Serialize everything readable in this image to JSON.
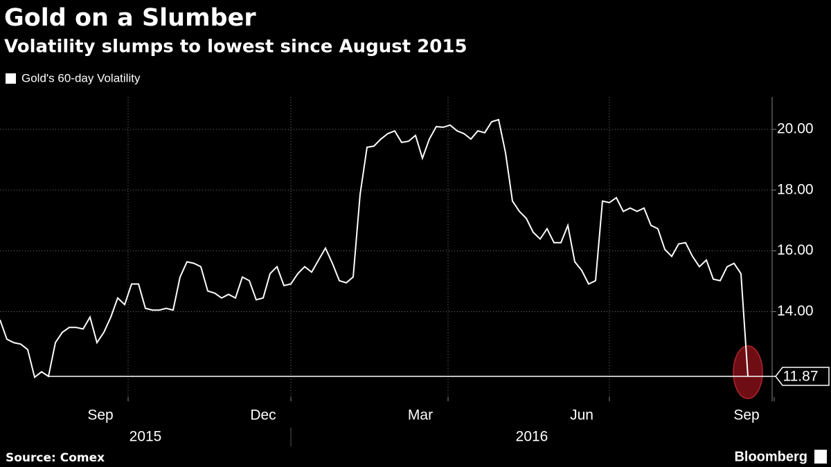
{
  "chart_data": {
    "type": "line",
    "title": "Gold on a Slumber",
    "subtitle": "Volatility slumps to lowest since August 2015",
    "source": "Source: Comex",
    "brand": "Bloomberg",
    "years": [
      "2015",
      "2016"
    ],
    "series": [
      {
        "name": "Gold's 60-day Volatility",
        "color": "#ffffff",
        "values": [
          13.73,
          13.09,
          12.98,
          12.93,
          12.75,
          11.84,
          12.02,
          11.87,
          12.98,
          13.32,
          13.48,
          13.48,
          13.43,
          13.82,
          12.98,
          13.32,
          13.82,
          14.45,
          14.23,
          14.91,
          14.91,
          14.11,
          14.05,
          14.05,
          14.11,
          14.05,
          15.14,
          15.64,
          15.59,
          15.48,
          14.68,
          14.61,
          14.45,
          14.57,
          14.45,
          15.14,
          15.02,
          14.39,
          14.45,
          15.25,
          15.48,
          14.86,
          14.91,
          15.25,
          15.48,
          15.3,
          15.7,
          16.09,
          15.59,
          15.02,
          14.95,
          15.14,
          17.86,
          19.41,
          19.45,
          19.68,
          19.86,
          19.95,
          19.57,
          19.61,
          19.8,
          19.05,
          19.68,
          20.09,
          20.07,
          20.14,
          19.95,
          19.86,
          19.68,
          19.95,
          19.89,
          20.25,
          20.32,
          19.23,
          17.64,
          17.3,
          17.07,
          16.61,
          16.39,
          16.73,
          16.27,
          16.27,
          16.84,
          15.64,
          15.36,
          14.91,
          15.02,
          17.64,
          17.59,
          17.75,
          17.3,
          17.41,
          17.3,
          17.41,
          16.84,
          16.73,
          16.05,
          15.82,
          16.23,
          16.27,
          15.82,
          15.48,
          15.7,
          15.07,
          15.02,
          15.48,
          15.59,
          15.25,
          11.87
        ]
      }
    ],
    "xlim": [
      0,
      111.5
    ],
    "xticks": [
      {
        "value": 14.5,
        "label": "Sep"
      },
      {
        "value": 38,
        "label": "Dec"
      },
      {
        "value": 60.7,
        "label": "Mar"
      },
      {
        "value": 84,
        "label": "Jun"
      },
      {
        "value": 107.8,
        "label": "Sep"
      }
    ],
    "ylim": [
      11.05,
      21.07
    ],
    "yticks": [
      {
        "value": 14,
        "label": "14.00"
      },
      {
        "value": 16,
        "label": "16.00"
      },
      {
        "value": 18,
        "label": "18.00"
      },
      {
        "value": 20,
        "label": "20.00"
      }
    ],
    "grid": true
  }
}
